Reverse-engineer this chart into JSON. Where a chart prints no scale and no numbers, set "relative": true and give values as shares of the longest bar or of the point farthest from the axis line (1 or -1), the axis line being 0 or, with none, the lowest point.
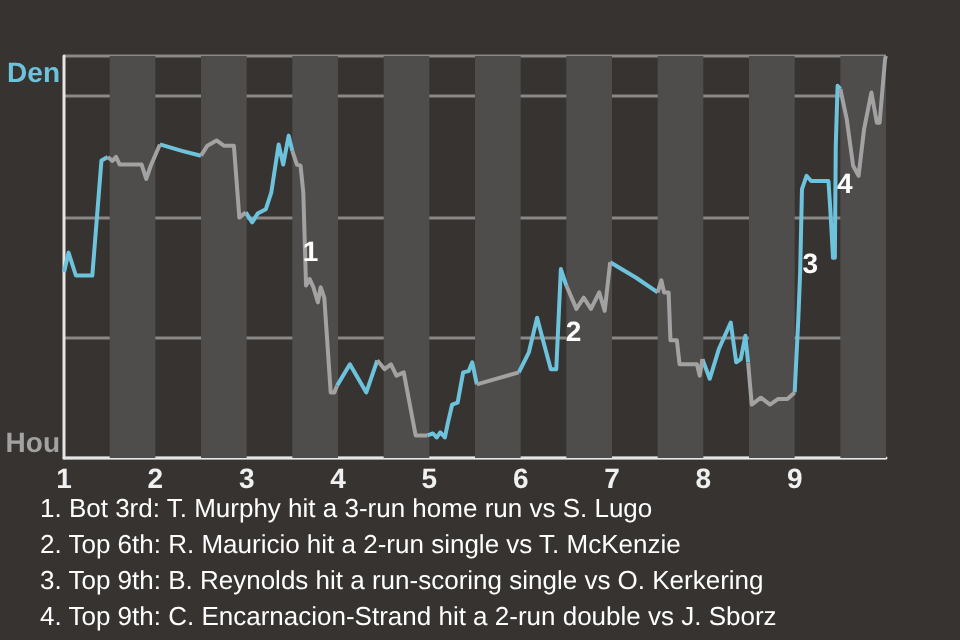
{
  "chart_data": {
    "type": "line",
    "relative": true,
    "series": [
      {
        "color": "#6ec3dc",
        "x": [
          1.0,
          1.05,
          1.13,
          1.31,
          1.41,
          1.48,
          null,
          2.05,
          2.29,
          2.5,
          null,
          2.99,
          3.06,
          3.12,
          3.21,
          3.27,
          3.35,
          3.4,
          3.46,
          3.5,
          null,
          3.99,
          4.13,
          4.31,
          4.43,
          null,
          4.98,
          5.04,
          5.08,
          5.12,
          5.17,
          5.2,
          5.25,
          5.31,
          5.37,
          5.43,
          5.47,
          5.52,
          null,
          5.98,
          6.09,
          6.18,
          6.26,
          6.33,
          6.39,
          6.44,
          6.5,
          null,
          6.98,
          7.26,
          7.5,
          null,
          7.99,
          8.07,
          8.17,
          8.3,
          8.36,
          8.41,
          8.46,
          8.49,
          null,
          9.0,
          9.04,
          9.06,
          9.08,
          9.13,
          9.18,
          9.37,
          9.39,
          9.42,
          9.44,
          9.45,
          9.47,
          9.5
        ],
        "values": [
          0.462,
          0.511,
          0.454,
          0.454,
          0.74,
          0.749,
          null,
          0.78,
          0.764,
          0.752,
          null,
          0.611,
          0.586,
          0.608,
          0.619,
          0.661,
          0.78,
          0.73,
          0.802,
          0.764,
          null,
          0.18,
          0.233,
          0.163,
          0.243,
          null,
          0.056,
          0.061,
          0.051,
          0.064,
          0.051,
          0.084,
          0.133,
          0.138,
          0.213,
          0.216,
          0.238,
          0.183,
          null,
          0.213,
          0.263,
          0.349,
          0.28,
          0.221,
          0.221,
          0.47,
          0.429,
          null,
          0.487,
          0.449,
          0.412,
          null,
          0.246,
          0.197,
          0.271,
          0.337,
          0.238,
          0.246,
          0.304,
          0.238,
          null,
          0.163,
          0.346,
          0.462,
          0.669,
          0.702,
          0.689,
          0.689,
          0.619,
          0.498,
          0.498,
          0.777,
          0.926,
          0.918
        ]
      },
      {
        "color": "#a2a2a2",
        "x": [
          1.48,
          1.53,
          1.57,
          1.61,
          1.85,
          1.9,
          1.95,
          2.05,
          null,
          2.5,
          2.57,
          2.67,
          2.75,
          2.86,
          2.92,
          2.99,
          null,
          3.5,
          3.55,
          3.59,
          3.62,
          3.65,
          3.69,
          3.73,
          3.78,
          3.81,
          3.85,
          3.92,
          3.96,
          3.99,
          null,
          4.43,
          4.51,
          4.58,
          4.64,
          4.72,
          4.85,
          4.98,
          null,
          5.52,
          5.73,
          5.98,
          null,
          6.5,
          6.61,
          6.69,
          6.77,
          6.86,
          6.92,
          6.98,
          null,
          7.5,
          7.54,
          7.57,
          7.62,
          7.64,
          7.71,
          7.74,
          7.93,
          7.96,
          7.99,
          null,
          8.49,
          8.53,
          8.63,
          8.73,
          8.82,
          8.92,
          9.0,
          null,
          9.5,
          9.57,
          9.64,
          9.7,
          9.76,
          9.84,
          9.9,
          9.93,
          9.99,
          10.0
        ],
        "values": [
          0.749,
          0.739,
          0.749,
          0.73,
          0.73,
          0.694,
          0.727,
          0.78,
          null,
          0.752,
          0.777,
          0.79,
          0.777,
          0.777,
          0.598,
          0.611,
          null,
          0.764,
          0.73,
          0.727,
          0.661,
          0.429,
          0.445,
          0.425,
          0.387,
          0.425,
          0.399,
          0.163,
          0.163,
          0.18,
          null,
          0.243,
          0.221,
          0.233,
          0.205,
          0.213,
          0.056,
          0.056,
          null,
          0.183,
          0.197,
          0.213,
          null,
          0.429,
          0.371,
          0.399,
          0.371,
          0.412,
          0.366,
          0.487,
          null,
          0.412,
          0.442,
          0.412,
          0.412,
          0.293,
          0.293,
          0.233,
          0.233,
          0.205,
          0.246,
          null,
          0.238,
          0.133,
          0.15,
          0.133,
          0.147,
          0.147,
          0.163,
          null,
          0.918,
          0.843,
          0.727,
          0.702,
          0.818,
          0.909,
          0.834,
          0.834,
          0.993,
          1.0
        ]
      }
    ],
    "xlim": [
      1,
      10
    ],
    "xticks": [
      1,
      2,
      3,
      4,
      5,
      6,
      7,
      8,
      9
    ],
    "grid": "y",
    "bands": [
      {
        "axis": "x",
        "from": 1.5,
        "to": 2,
        "color": "#4f4d4b"
      },
      {
        "axis": "x",
        "from": 2.5,
        "to": 3,
        "color": "#4f4d4b"
      },
      {
        "axis": "x",
        "from": 3.5,
        "to": 4,
        "color": "#4f4d4b"
      },
      {
        "axis": "x",
        "from": 4.5,
        "to": 5,
        "color": "#4f4d4b"
      },
      {
        "axis": "x",
        "from": 5.5,
        "to": 6,
        "color": "#4f4d4b"
      },
      {
        "axis": "x",
        "from": 6.5,
        "to": 7,
        "color": "#4f4d4b"
      },
      {
        "axis": "x",
        "from": 7.5,
        "to": 8,
        "color": "#4f4d4b"
      },
      {
        "axis": "x",
        "from": 8.5,
        "to": 9,
        "color": "#4f4d4b"
      },
      {
        "axis": "x",
        "from": 9.5,
        "to": 10,
        "color": "#4f4d4b"
      }
    ],
    "annotations": [
      "Den",
      "Hou",
      {
        "text": "1",
        "x": 3.7,
        "y": 0.515
      },
      {
        "text": "2",
        "x": 6.58,
        "y": 0.316
      },
      {
        "text": "3",
        "x": 9.17,
        "y": 0.485
      },
      {
        "text": "4",
        "x": 9.55,
        "y": 0.684
      },
      "1. Bot 3rd: T. Murphy hit a 3-run home run vs S. Lugo",
      "2. Top 6th: R. Mauricio hit a 2-run single vs T. McKenzie",
      "3. Top 9th: B. Reynolds hit a run-scoring single vs O. Kerkering",
      "4. Top 9th: C. Encarnacion-Strand hit a 2-run double vs J. Sborz"
    ]
  }
}
